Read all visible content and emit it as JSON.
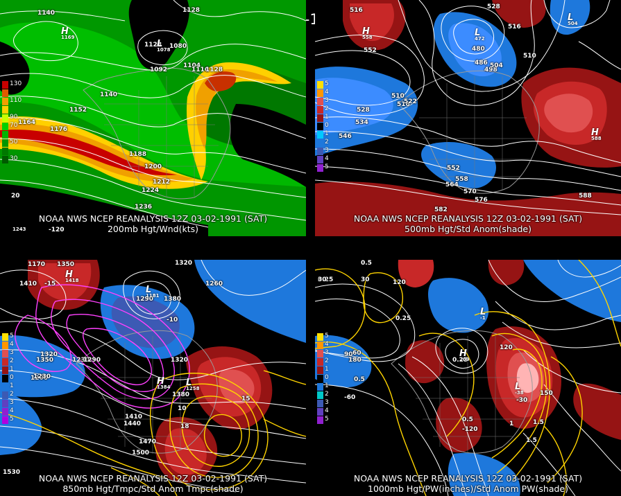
{
  "title": "12Z 03-02-1991 (SAT)",
  "panels": [
    {
      "id": "p200",
      "caption_line1": "NOAA NWS NCEP REANALYSIS 12Z 03-02-1991 (SAT)",
      "caption_line2": "200mb Hgt/Wnd(kts)",
      "legend": [
        {
          "label": "130",
          "color": "#c80000"
        },
        {
          "label": "",
          "color": "#e05a00"
        },
        {
          "label": "110",
          "color": "#f0a000"
        },
        {
          "label": "",
          "color": "#ffd000"
        },
        {
          "label": "90",
          "color": "#c8ff00"
        },
        {
          "label": "70",
          "color": "#00d000"
        },
        {
          "label": "",
          "color": "#00b400"
        },
        {
          "label": "50",
          "color": "#009600"
        },
        {
          "label": "",
          "color": "#007800"
        },
        {
          "label": "30",
          "color": "#005a00"
        }
      ],
      "contour_labels": [
        "1140",
        "1128",
        "1128",
        "1080",
        "1092",
        "1104",
        "1116",
        "1128",
        "1140",
        "1152",
        "1164",
        "1176",
        "1188",
        "1200",
        "1212",
        "1224",
        "1236",
        "20",
        "-120"
      ],
      "highs": [
        {
          "letter": "H",
          "value": "1169"
        }
      ],
      "lows": [
        {
          "letter": "L",
          "value": "1078"
        }
      ],
      "extra_labels": [
        "1243"
      ]
    },
    {
      "id": "p500",
      "caption_line1": "NOAA NWS NCEP REANALYSIS 12Z 03-02-1991 (SAT)",
      "caption_line2": "500mb Hgt/Std Anom(shade)",
      "legend": [
        {
          "label": "5",
          "color": "#ffe000"
        },
        {
          "label": "4",
          "color": "#ff9600"
        },
        {
          "label": "3",
          "color": "#e05050"
        },
        {
          "label": "2",
          "color": "#c82828"
        },
        {
          "label": "1",
          "color": "#961414"
        },
        {
          "label": "0",
          "color": "#000000"
        },
        {
          "label": "1",
          "color": "#00c8ff"
        },
        {
          "label": "2",
          "color": "#1e78dc"
        },
        {
          "label": "3",
          "color": "#3c5ab4"
        },
        {
          "label": "4",
          "color": "#6040c0"
        },
        {
          "label": "5",
          "color": "#9020d0"
        }
      ],
      "contour_labels": [
        "516",
        "528",
        "516",
        "510",
        "552",
        "480",
        "486",
        "498",
        "504",
        "510",
        "516",
        "522",
        "528",
        "534",
        "546",
        "552",
        "558",
        "564",
        "570",
        "576",
        "582",
        "588"
      ],
      "highs": [
        {
          "letter": "H",
          "value": "558"
        },
        {
          "letter": "H",
          "value": "588"
        }
      ],
      "lows": [
        {
          "letter": "L",
          "value": "472"
        },
        {
          "letter": "L",
          "value": "504"
        }
      ]
    },
    {
      "id": "p850",
      "caption_line1": "NOAA NWS NCEP REANALYSIS 12Z 03-02-1991 (SAT)",
      "caption_line2": "850mb Hgt/Tmpc/Std Anom Tmpc(shade)",
      "legend": [
        {
          "label": "5",
          "color": "#ffe000"
        },
        {
          "label": "4",
          "color": "#ff9600"
        },
        {
          "label": "3",
          "color": "#e05050"
        },
        {
          "label": "2",
          "color": "#c82828"
        },
        {
          "label": "1",
          "color": "#961414"
        },
        {
          "label": "0",
          "color": "#000000"
        },
        {
          "label": "1",
          "color": "#1e78dc"
        },
        {
          "label": "2",
          "color": "#3c5ab4"
        },
        {
          "label": "3",
          "color": "#6040c0"
        },
        {
          "label": "4",
          "color": "#9020d0"
        },
        {
          "label": "5",
          "color": "#b000e0"
        }
      ],
      "contour_labels": [
        "1170",
        "1350",
        "1410",
        "1320",
        "1380",
        "1290",
        "1260",
        "1320",
        "1350",
        "1230",
        "1200",
        "1230",
        "1290",
        "1320",
        "1380",
        "1410",
        "1440",
        "1470",
        "1500",
        "1530",
        "-15",
        "-10",
        "10",
        "15",
        "18"
      ],
      "highs": [
        {
          "letter": "H",
          "value": "1418"
        },
        {
          "letter": "H",
          "value": "1384"
        }
      ],
      "lows": [
        {
          "letter": "L",
          "value": "1181"
        },
        {
          "letter": "L",
          "value": "1258"
        }
      ]
    },
    {
      "id": "p1000",
      "caption_line1": "NOAA NWS NCEP REANALYSIS 12Z 03-02-1991 (SAT)",
      "caption_line2": "1000mb Hgt/PW(inches)/Std Anom PW(shade)",
      "legend": [
        {
          "label": "5",
          "color": "#ffe000"
        },
        {
          "label": "4",
          "color": "#ff9600"
        },
        {
          "label": "3",
          "color": "#e05050"
        },
        {
          "label": "2",
          "color": "#c82828"
        },
        {
          "label": "1",
          "color": "#961414"
        },
        {
          "label": "0",
          "color": "#000000"
        },
        {
          "label": "1",
          "color": "#1e78dc"
        },
        {
          "label": "2",
          "color": "#00c8c8"
        },
        {
          "label": "3",
          "color": "#3c5ab4"
        },
        {
          "label": "4",
          "color": "#6040c0"
        },
        {
          "label": "5",
          "color": "#9020d0"
        }
      ],
      "contour_labels": [
        "0.5",
        "0.25",
        "0.25",
        "0.5",
        "0.25",
        "0.5",
        "1",
        "1.5",
        "1.5",
        "90",
        "60",
        "30",
        "-30",
        "120",
        "150",
        "180",
        "120",
        "-60",
        "-120",
        "0",
        "30"
      ],
      "highs": [
        {
          "letter": "H",
          "value": "209"
        }
      ],
      "lows": [
        {
          "letter": "L",
          "value": "-1"
        },
        {
          "letter": "L",
          "value": "-38"
        }
      ]
    }
  ],
  "colors": {
    "contour": "#ffffff",
    "map_outline": "#9a9a9a",
    "temperature_contour": "#ffd400",
    "cold_temperature_contour": "#ff40ff",
    "pw_contour": "#ffd400"
  }
}
